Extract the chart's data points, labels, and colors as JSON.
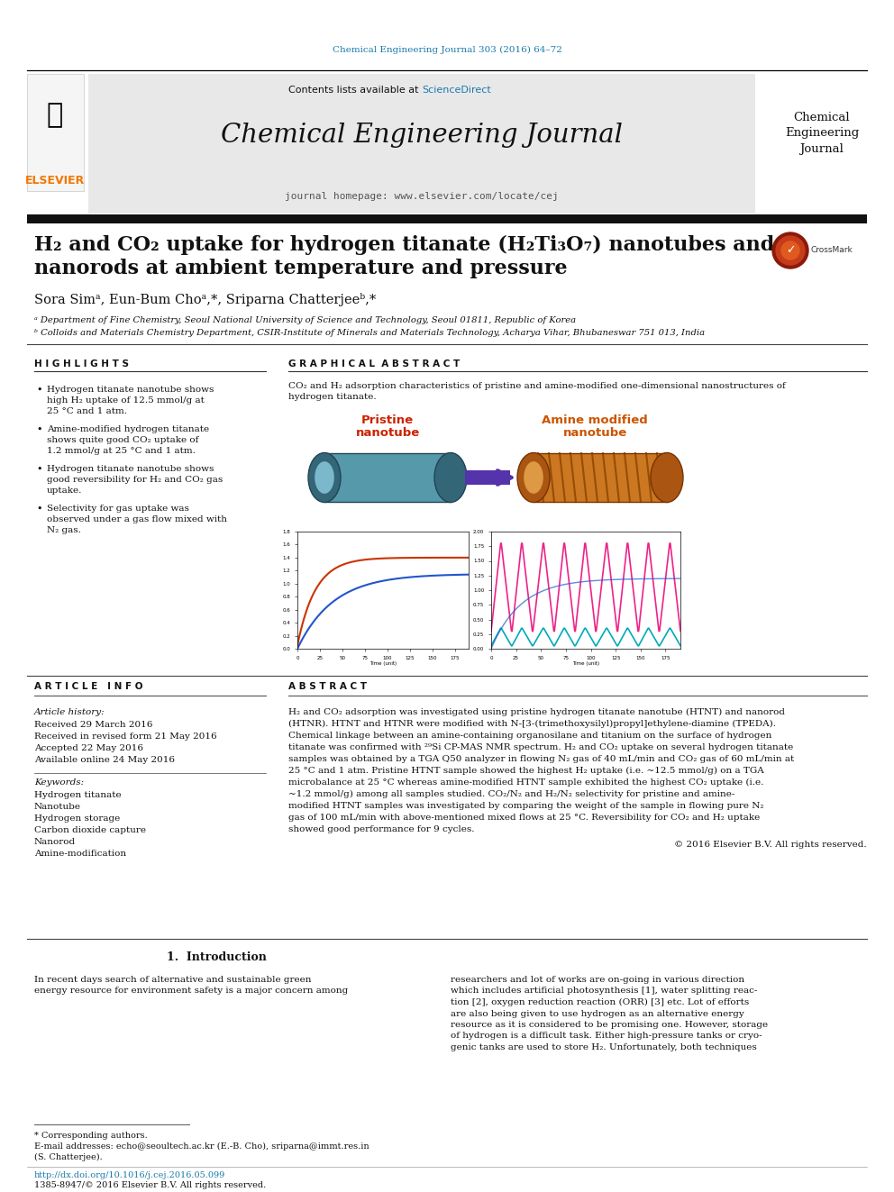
{
  "bg_color": "#ffffff",
  "header_cite_color": "#1a7aaa",
  "header_cite": "Chemical Engineering Journal 303 (2016) 64–72",
  "journal_name": "Chemical Engineering Journal",
  "journal_homepage": "journal homepage: www.elsevier.com/locate/cej",
  "contents_text": "Contents lists available at ",
  "sciencedirect_text": "ScienceDirect",
  "elsevier_color": "#f07800",
  "title_line1": "H₂ and CO₂ uptake for hydrogen titanate (H₂Ti₃O₇) nanotubes and",
  "title_line2": "nanorods at ambient temperature and pressure",
  "authors_text": "Sora Simᵃ, Eun-Bum Choᵃ,*, Sriparna Chatterjeeᵇ,*",
  "affil_a": "ᵃ Department of Fine Chemistry, Seoul National University of Science and Technology, Seoul 01811, Republic of Korea",
  "affil_b": "ᵇ Colloids and Materials Chemistry Department, CSIR-Institute of Minerals and Materials Technology, Acharya Vihar, Bhubaneswar 751 013, India",
  "highlights_title": "H I G H L I G H T S",
  "highlights": [
    "Hydrogen titanate nanotube shows\nhigh H₂ uptake of 12.5 mmol/g at\n25 °C and 1 atm.",
    "Amine-modified hydrogen titanate\nshows quite good CO₂ uptake of\n1.2 mmol/g at 25 °C and 1 atm.",
    "Hydrogen titanate nanotube shows\ngood reversibility for H₂ and CO₂ gas\nuptake.",
    "Selectivity for gas uptake was\nobserved under a gas flow mixed with\nN₂ gas."
  ],
  "graphical_abstract_title": "G R A P H I C A L  A B S T R A C T",
  "graphical_abstract_text1": "CO₂ and H₂ adsorption characteristics of pristine and amine-modified one-dimensional nanostructures of",
  "graphical_abstract_text2": "hydrogen titanate.",
  "pristine_label": "Pristine\nnanotube",
  "amine_label": "Amine modified\nnanotube",
  "article_info_title": "A R T I C L E   I N F O",
  "article_history_title": "Article history:",
  "received": "Received 29 March 2016",
  "revised": "Received in revised form 21 May 2016",
  "accepted": "Accepted 22 May 2016",
  "available": "Available online 24 May 2016",
  "keywords_title": "Keywords:",
  "keywords": [
    "Hydrogen titanate",
    "Nanotube",
    "Hydrogen storage",
    "Carbon dioxide capture",
    "Nanorod",
    "Amine-modification"
  ],
  "abstract_title": "A B S T R A C T",
  "abstract_lines": [
    "H₂ and CO₂ adsorption was investigated using pristine hydrogen titanate nanotube (HTNT) and nanorod",
    "(HTNR). HTNT and HTNR were modified with N-[3-(trimethoxysilyl)propyl]ethylene-diamine (TPEDA).",
    "Chemical linkage between an amine-containing organosilane and titanium on the surface of hydrogen",
    "titanate was confirmed with ²⁹Si CP-MAS NMR spectrum. H₂ and CO₂ uptake on several hydrogen titanate",
    "samples was obtained by a TGA Q50 analyzer in flowing N₂ gas of 40 mL/min and CO₂ gas of 60 mL/min at",
    "25 °C and 1 atm. Pristine HTNT sample showed the highest H₂ uptake (i.e. ~12.5 mmol/g) on a TGA",
    "microbalance at 25 °C whereas amine-modified HTNT sample exhibited the highest CO₂ uptake (i.e.",
    "~1.2 mmol/g) among all samples studied. CO₂/N₂ and H₂/N₂ selectivity for pristine and amine-",
    "modified HTNT samples was investigated by comparing the weight of the sample in flowing pure N₂",
    "gas of 100 mL/min with above-mentioned mixed flows at 25 °C. Reversibility for CO₂ and H₂ uptake",
    "showed good performance for 9 cycles."
  ],
  "copyright": "© 2016 Elsevier B.V. All rights reserved.",
  "section1_title": "1.  Introduction",
  "intro_left_lines": [
    "In recent days search of alternative and sustainable green",
    "energy resource for environment safety is a major concern among"
  ],
  "intro_right_lines": [
    "researchers and lot of works are on-going in various direction",
    "which includes artificial photosynthesis [1], water splitting reac-",
    "tion [2], oxygen reduction reaction (ORR) [3] etc. Lot of efforts",
    "are also being given to use hydrogen as an alternative energy",
    "resource as it is considered to be promising one. However, storage",
    "of hydrogen is a difficult task. Either high-pressure tanks or cryo-",
    "genic tanks are used to store H₂. Unfortunately, both techniques"
  ],
  "corresp_note": "* Corresponding authors.",
  "email_note": "E-mail addresses: echo@seoultech.ac.kr (E.-B. Cho), sriparna@immt.res.in",
  "email_note2": "(S. Chatterjee).",
  "doi_text": "http://dx.doi.org/10.1016/j.cej.2016.05.099",
  "issn_text": "1385-8947/© 2016 Elsevier B.V. All rights reserved."
}
